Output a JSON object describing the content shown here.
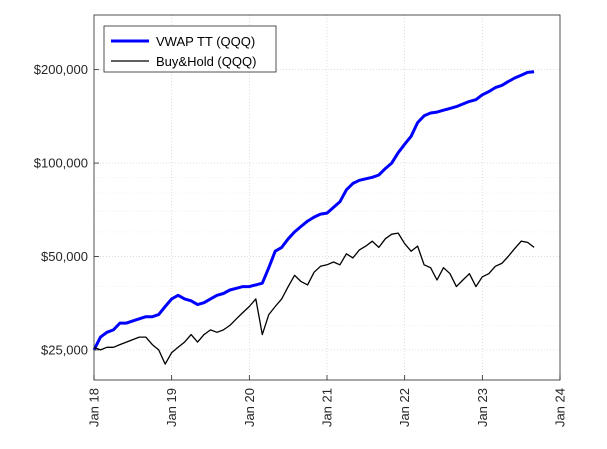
{
  "chart_data": {
    "type": "line",
    "title": "",
    "xlabel": "",
    "ylabel": "",
    "y_scale": "log",
    "grid": "on (dotted major and minor)",
    "legend_position": "top-left",
    "xlim": [
      "2018-01",
      "2024-01"
    ],
    "ylim": [
      20000,
      300000
    ],
    "x_ticks": [
      "Jan 18",
      "Jan 19",
      "Jan 20",
      "Jan 21",
      "Jan 22",
      "Jan 23",
      "Jan 24"
    ],
    "y_ticks": [
      {
        "value": 25000,
        "label": "$25,000"
      },
      {
        "value": 50000,
        "label": "$50,000"
      },
      {
        "value": 100000,
        "label": "$100,000"
      },
      {
        "value": 200000,
        "label": "$200,000"
      }
    ],
    "series": [
      {
        "name": "VWAP TT (QQQ)",
        "color": "#0000ff",
        "points": [
          [
            "2018-01",
            25000
          ],
          [
            "2018-02",
            27500
          ],
          [
            "2018-03",
            28500
          ],
          [
            "2018-04",
            29000
          ],
          [
            "2018-05",
            30500
          ],
          [
            "2018-06",
            30500
          ],
          [
            "2018-07",
            31000
          ],
          [
            "2018-08",
            31500
          ],
          [
            "2018-09",
            32000
          ],
          [
            "2018-10",
            32000
          ],
          [
            "2018-11",
            32500
          ],
          [
            "2018-12",
            34500
          ],
          [
            "2019-01",
            36500
          ],
          [
            "2019-02",
            37500
          ],
          [
            "2019-03",
            36500
          ],
          [
            "2019-04",
            36000
          ],
          [
            "2019-05",
            35000
          ],
          [
            "2019-06",
            35500
          ],
          [
            "2019-07",
            36500
          ],
          [
            "2019-08",
            37500
          ],
          [
            "2019-09",
            38000
          ],
          [
            "2019-10",
            39000
          ],
          [
            "2019-11",
            39500
          ],
          [
            "2019-12",
            40000
          ],
          [
            "2020-01",
            40000
          ],
          [
            "2020-02",
            40500
          ],
          [
            "2020-03",
            41000
          ],
          [
            "2020-04",
            46000
          ],
          [
            "2020-05",
            52000
          ],
          [
            "2020-06",
            53500
          ],
          [
            "2020-07",
            57000
          ],
          [
            "2020-08",
            60000
          ],
          [
            "2020-09",
            62500
          ],
          [
            "2020-10",
            65000
          ],
          [
            "2020-11",
            67000
          ],
          [
            "2020-12",
            68500
          ],
          [
            "2021-01",
            69000
          ],
          [
            "2021-02",
            72000
          ],
          [
            "2021-03",
            75000
          ],
          [
            "2021-04",
            82000
          ],
          [
            "2021-05",
            86000
          ],
          [
            "2021-06",
            88000
          ],
          [
            "2021-07",
            89000
          ],
          [
            "2021-08",
            90000
          ],
          [
            "2021-09",
            91500
          ],
          [
            "2021-10",
            96000
          ],
          [
            "2021-11",
            100000
          ],
          [
            "2021-12",
            108000
          ],
          [
            "2022-01",
            115000
          ],
          [
            "2022-02",
            122000
          ],
          [
            "2022-03",
            135000
          ],
          [
            "2022-04",
            142000
          ],
          [
            "2022-05",
            145000
          ],
          [
            "2022-06",
            146000
          ],
          [
            "2022-07",
            148000
          ],
          [
            "2022-08",
            150000
          ],
          [
            "2022-09",
            152000
          ],
          [
            "2022-10",
            155000
          ],
          [
            "2022-11",
            158000
          ],
          [
            "2022-12",
            160000
          ],
          [
            "2023-01",
            166000
          ],
          [
            "2023-02",
            170000
          ],
          [
            "2023-03",
            175000
          ],
          [
            "2023-04",
            178000
          ],
          [
            "2023-05",
            183000
          ],
          [
            "2023-06",
            188000
          ],
          [
            "2023-07",
            192000
          ],
          [
            "2023-08",
            196000
          ],
          [
            "2023-09",
            197000
          ]
        ]
      },
      {
        "name": "Buy&Hold (QQQ)",
        "color": "#000000",
        "points": [
          [
            "2018-01",
            25500
          ],
          [
            "2018-02",
            25000
          ],
          [
            "2018-03",
            25500
          ],
          [
            "2018-04",
            25500
          ],
          [
            "2018-05",
            26000
          ],
          [
            "2018-06",
            26500
          ],
          [
            "2018-07",
            27000
          ],
          [
            "2018-08",
            27500
          ],
          [
            "2018-09",
            27500
          ],
          [
            "2018-10",
            26000
          ],
          [
            "2018-11",
            25000
          ],
          [
            "2018-12",
            22500
          ],
          [
            "2019-01",
            24500
          ],
          [
            "2019-02",
            25500
          ],
          [
            "2019-03",
            26500
          ],
          [
            "2019-04",
            28000
          ],
          [
            "2019-05",
            26500
          ],
          [
            "2019-06",
            28000
          ],
          [
            "2019-07",
            29000
          ],
          [
            "2019-08",
            28500
          ],
          [
            "2019-09",
            29000
          ],
          [
            "2019-10",
            30000
          ],
          [
            "2019-11",
            31500
          ],
          [
            "2019-12",
            33000
          ],
          [
            "2020-01",
            34500
          ],
          [
            "2020-02",
            36500
          ],
          [
            "2020-03",
            28000
          ],
          [
            "2020-04",
            32500
          ],
          [
            "2020-05",
            34500
          ],
          [
            "2020-06",
            36500
          ],
          [
            "2020-07",
            40000
          ],
          [
            "2020-08",
            43500
          ],
          [
            "2020-09",
            41500
          ],
          [
            "2020-10",
            40500
          ],
          [
            "2020-11",
            44500
          ],
          [
            "2020-12",
            46500
          ],
          [
            "2021-01",
            47000
          ],
          [
            "2021-02",
            48000
          ],
          [
            "2021-03",
            47000
          ],
          [
            "2021-04",
            51000
          ],
          [
            "2021-05",
            49500
          ],
          [
            "2021-06",
            52500
          ],
          [
            "2021-07",
            54000
          ],
          [
            "2021-08",
            56000
          ],
          [
            "2021-09",
            53500
          ],
          [
            "2021-10",
            57000
          ],
          [
            "2021-11",
            59000
          ],
          [
            "2021-12",
            59500
          ],
          [
            "2022-01",
            55000
          ],
          [
            "2022-02",
            52000
          ],
          [
            "2022-03",
            54000
          ],
          [
            "2022-04",
            47000
          ],
          [
            "2022-05",
            46000
          ],
          [
            "2022-06",
            42000
          ],
          [
            "2022-07",
            46000
          ],
          [
            "2022-08",
            44000
          ],
          [
            "2022-09",
            40000
          ],
          [
            "2022-10",
            42000
          ],
          [
            "2022-11",
            44000
          ],
          [
            "2022-12",
            40000
          ],
          [
            "2023-01",
            43000
          ],
          [
            "2023-02",
            44000
          ],
          [
            "2023-03",
            46500
          ],
          [
            "2023-04",
            47500
          ],
          [
            "2023-05",
            50000
          ],
          [
            "2023-06",
            53000
          ],
          [
            "2023-07",
            56000
          ],
          [
            "2023-08",
            55500
          ],
          [
            "2023-09",
            53500
          ]
        ]
      }
    ]
  }
}
